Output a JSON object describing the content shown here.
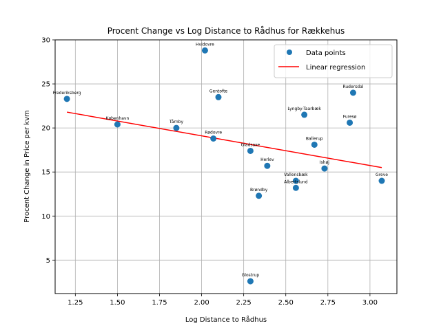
{
  "chart_data": {
    "type": "scatter",
    "title": "Procent Change vs Log Distance to Rådhus for Rækkehus",
    "xlabel": "Log Distance to Rådhus",
    "ylabel": "Procent Change in Price per kvm",
    "xlim": [
      1.13,
      3.16
    ],
    "ylim": [
      1.2,
      30.0
    ],
    "xticks": [
      "1.25",
      "1.50",
      "1.75",
      "2.00",
      "2.25",
      "2.50",
      "2.75",
      "3.00"
    ],
    "yticks": [
      "5",
      "10",
      "15",
      "20",
      "25",
      "30"
    ],
    "grid": true,
    "legend_position": "top-right",
    "colors": {
      "points": "#1f77b4",
      "regression": "#ff0000",
      "grid": "#b0b0b0"
    },
    "series": [
      {
        "name": "Data points",
        "points": [
          {
            "label": "Frederiksberg",
            "x": 1.2,
            "y": 23.3
          },
          {
            "label": "København",
            "x": 1.5,
            "y": 20.4
          },
          {
            "label": "Tårnby",
            "x": 1.85,
            "y": 20.0
          },
          {
            "label": "Hvidovre",
            "x": 2.02,
            "y": 28.8
          },
          {
            "label": "Gentofte",
            "x": 2.1,
            "y": 23.5
          },
          {
            "label": "Rødovre",
            "x": 2.07,
            "y": 18.8
          },
          {
            "label": "Gladsaxe",
            "x": 2.29,
            "y": 17.4
          },
          {
            "label": "Herlev",
            "x": 2.39,
            "y": 15.7
          },
          {
            "label": "Brøndby",
            "x": 2.34,
            "y": 12.3
          },
          {
            "label": "Glostrup",
            "x": 2.29,
            "y": 2.6
          },
          {
            "label": "Vallensbæk",
            "x": 2.56,
            "y": 14.0
          },
          {
            "label": "Albertslund",
            "x": 2.56,
            "y": 13.2
          },
          {
            "label": "Lyngby-Taarbæk",
            "x": 2.61,
            "y": 21.5
          },
          {
            "label": "Ballerup",
            "x": 2.67,
            "y": 18.1
          },
          {
            "label": "Ishøj",
            "x": 2.73,
            "y": 15.4
          },
          {
            "label": "Rudersdal",
            "x": 2.9,
            "y": 24.0
          },
          {
            "label": "Furesø",
            "x": 2.88,
            "y": 20.6
          },
          {
            "label": "Greve",
            "x": 3.07,
            "y": 14.0
          }
        ]
      },
      {
        "name": "Linear regression",
        "type": "line",
        "x": [
          1.2,
          3.07
        ],
        "y": [
          21.8,
          15.5
        ]
      }
    ]
  }
}
